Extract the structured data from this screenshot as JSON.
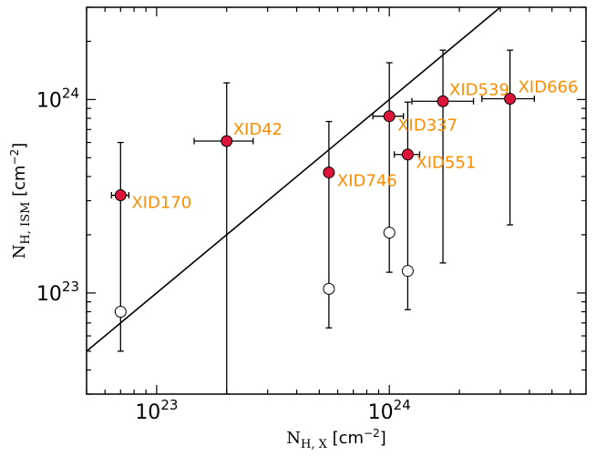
{
  "chart_data": {
    "type": "scatter",
    "xscale": "log",
    "yscale": "log",
    "xlim": [
      5e+22,
      7e+24
    ],
    "ylim": [
      3e+22,
      3e+24
    ],
    "grid": false,
    "legend": "none",
    "xlabel": {
      "main": "N",
      "sub": "H, X",
      "unit": " [cm",
      "sup": "−2",
      "close": "]"
    },
    "ylabel": {
      "main": "N",
      "sub": "H, ISM",
      "unit": " [cm",
      "sup": "−2",
      "close": "]"
    },
    "xticks": [
      {
        "value": 1e+23,
        "base": "10",
        "exp": "23"
      },
      {
        "value": 1e+24,
        "base": "10",
        "exp": "24"
      }
    ],
    "yticks": [
      {
        "value": 1e+23,
        "base": "10",
        "exp": "23"
      },
      {
        "value": 1e+24,
        "base": "10",
        "exp": "24"
      }
    ],
    "one_to_one_line": [
      [
        5e+22,
        5e+22
      ],
      [
        3.5e+24,
        3.5e+24
      ]
    ],
    "series": [
      {
        "marker": "filled",
        "color": "#dc143c",
        "label_color": "#ff8c00",
        "points": [
          {
            "label": "XID170",
            "x": 7e+22,
            "y": 3.2e+23,
            "xerr": [
              6.4e+22,
              7.6e+22
            ],
            "yerr": [
              5e+22,
              6e+23
            ]
          },
          {
            "label": "XID42",
            "x": 2e+23,
            "y": 6.1e+23,
            "xerr": [
              1.45e+23,
              2.6e+23
            ],
            "yerr": [
              3e+22,
              1.22e+24
            ]
          },
          {
            "label": "XID746",
            "x": 5.5e+23,
            "y": 4.2e+23,
            "xerr": [
              5.5e+23,
              5.5e+23
            ],
            "yerr": [
              6.6e+22,
              7.7e+23
            ]
          },
          {
            "label": "XID337",
            "x": 1e+24,
            "y": 8.2e+23,
            "xerr": [
              8.5e+23,
              1.15e+24
            ],
            "yerr": [
              1.28e+23,
              1.55e+24
            ]
          },
          {
            "label": "XID551",
            "x": 1.2e+24,
            "y": 5.2e+23,
            "xerr": [
              1.05e+24,
              1.35e+24
            ],
            "yerr": [
              8.2e+22,
              9.7e+23
            ]
          },
          {
            "label": "XID539",
            "x": 1.7e+24,
            "y": 9.8e+23,
            "xerr": [
              1.25e+24,
              2.3e+24
            ],
            "yerr": [
              1.43e+23,
              1.8e+24
            ]
          },
          {
            "label": "XID666",
            "x": 3.3e+24,
            "y": 1.01e+24,
            "xerr": [
              2.5e+24,
              4.2e+24
            ],
            "yerr": [
              2.25e+23,
              1.8e+24
            ]
          }
        ]
      },
      {
        "marker": "open",
        "color": "#ffffff",
        "points": [
          {
            "x": 7e+22,
            "y": 8e+22
          },
          {
            "x": 5.5e+23,
            "y": 1.05e+23
          },
          {
            "x": 1e+24,
            "y": 2.05e+23
          },
          {
            "x": 1.2e+24,
            "y": 1.3e+23
          }
        ]
      }
    ]
  }
}
